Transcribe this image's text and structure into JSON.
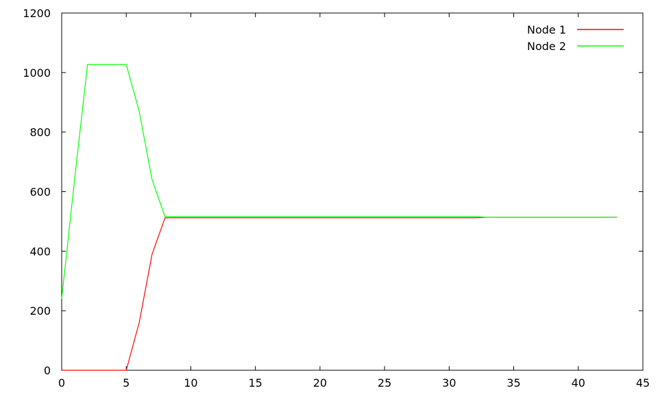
{
  "chart_data": {
    "type": "line",
    "title": "",
    "xlabel": "",
    "ylabel": "",
    "xlim": [
      0,
      45
    ],
    "ylim": [
      0,
      1200
    ],
    "x_ticks": [
      0,
      5,
      10,
      15,
      20,
      25,
      30,
      35,
      40,
      45
    ],
    "y_ticks": [
      0,
      200,
      400,
      600,
      800,
      1000,
      1200
    ],
    "x_tick_labels": [
      "0",
      "5",
      "10",
      "15",
      "20",
      "25",
      "30",
      "35",
      "40",
      "45"
    ],
    "y_tick_labels": [
      "0",
      "200",
      "400",
      "600",
      "800",
      "1000",
      "1200"
    ],
    "grid": false,
    "legend_position": "top-right",
    "series": [
      {
        "name": "Node 1",
        "color": "#ff0000",
        "points": [
          [
            0,
            0
          ],
          [
            1,
            0
          ],
          [
            2,
            0
          ],
          [
            3,
            0
          ],
          [
            4,
            0
          ],
          [
            5,
            0
          ],
          [
            6,
            160
          ],
          [
            7,
            390
          ],
          [
            8,
            512
          ],
          [
            10,
            512
          ],
          [
            20,
            512
          ],
          [
            30,
            512
          ],
          [
            32,
            512
          ],
          [
            33,
            514
          ],
          [
            43,
            514
          ]
        ]
      },
      {
        "name": "Node 2",
        "color": "#00ff00",
        "points": [
          [
            0,
            240
          ],
          [
            1,
            640
          ],
          [
            2,
            1027
          ],
          [
            3,
            1027
          ],
          [
            4,
            1027
          ],
          [
            5,
            1027
          ],
          [
            6,
            870
          ],
          [
            7,
            640
          ],
          [
            8,
            516
          ],
          [
            10,
            516
          ],
          [
            20,
            516
          ],
          [
            30,
            516
          ],
          [
            32,
            516
          ],
          [
            33,
            514
          ],
          [
            43,
            514
          ]
        ]
      }
    ]
  }
}
